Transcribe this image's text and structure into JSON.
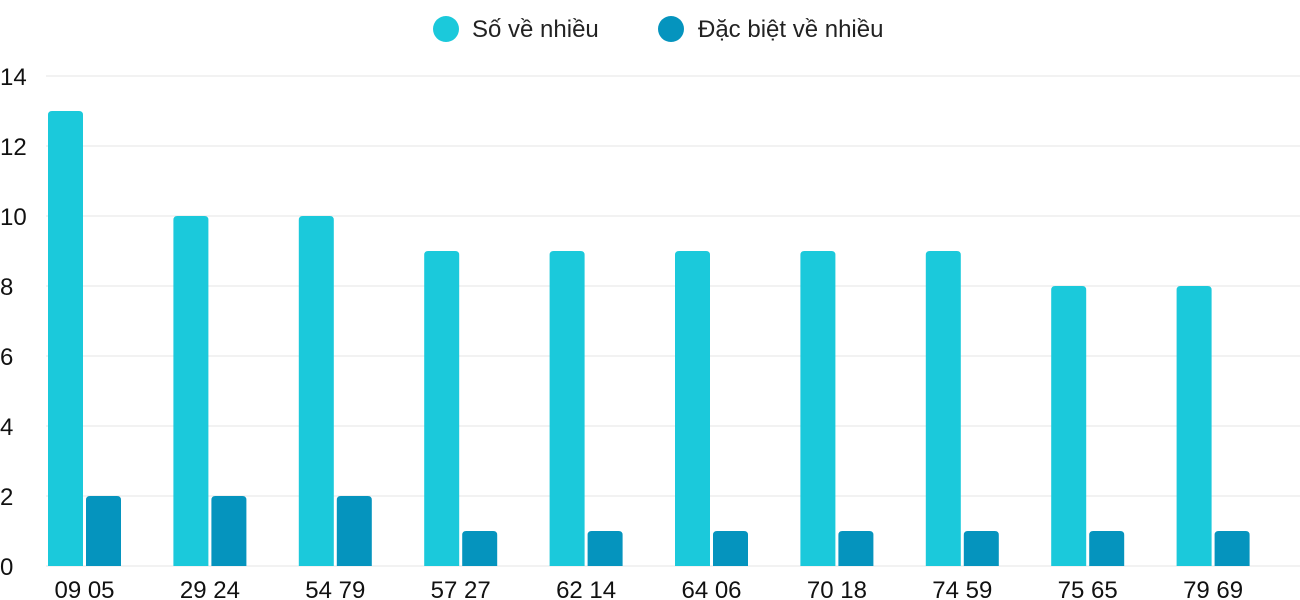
{
  "chart_data": {
    "type": "bar",
    "categories": [
      "09 05",
      "29 24",
      "54 79",
      "57 27",
      "62 14",
      "64 06",
      "70 18",
      "74 59",
      "75 65",
      "79 69"
    ],
    "series": [
      {
        "name": "Số về nhiều",
        "color": "#1BC9DB",
        "values": [
          13,
          10,
          10,
          9,
          9,
          9,
          9,
          9,
          8,
          8
        ]
      },
      {
        "name": "Đặc biệt về nhiều",
        "color": "#0594BE",
        "values": [
          2,
          2,
          2,
          1,
          1,
          1,
          1,
          1,
          1,
          1
        ]
      }
    ],
    "ylim": [
      0,
      14
    ],
    "yticks": [
      "0",
      "2",
      "4",
      "6",
      "8",
      "10",
      "12",
      "14"
    ],
    "grid": true,
    "legend_position": "top-center",
    "grid_color": "#E5E5E5"
  }
}
